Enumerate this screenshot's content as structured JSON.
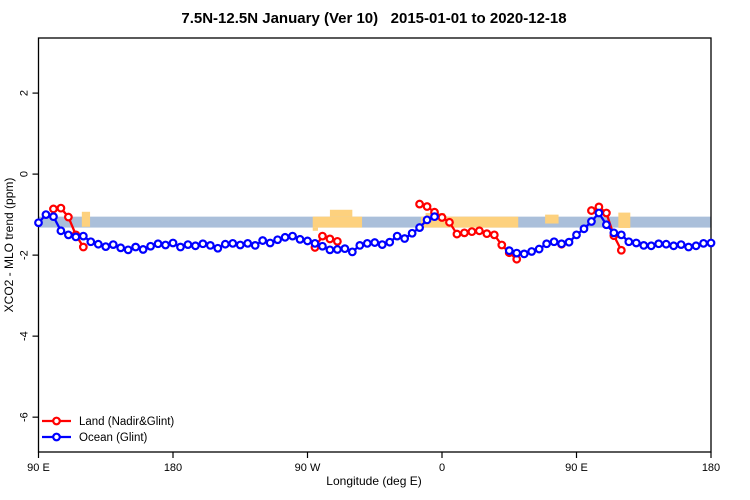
{
  "chart_data": {
    "type": "line-scatter",
    "title": "7.5N-12.5N January (Ver 10)   2015-01-01 to 2020-12-18",
    "xlabel": "Longitude (deg E)",
    "ylabel": "XCO2 - MLO trend (ppm)",
    "xlim": [
      90,
      540
    ],
    "ylim": [
      -6.86,
      3.36
    ],
    "grid": false,
    "x_ticks": [
      {
        "value": 90,
        "label": "90 E"
      },
      {
        "value": 180,
        "label": "180"
      },
      {
        "value": 270,
        "label": "90 W"
      },
      {
        "value": 360,
        "label": "0"
      },
      {
        "value": 450,
        "label": "90 E"
      },
      {
        "value": 540,
        "label": "180"
      }
    ],
    "y_ticks": [
      {
        "value": 2,
        "label": "2"
      },
      {
        "value": 0,
        "label": "0"
      },
      {
        "value": -2,
        "label": "-2"
      },
      {
        "value": -4,
        "label": "-4"
      },
      {
        "value": -6,
        "label": "-6"
      }
    ],
    "map_band": {
      "description": "latitude-strip map: ocean band with land segments",
      "ocean_color": "#aabfda",
      "land_color": "#fdd17e",
      "ppm_top": -1.05,
      "ppm_bottom": -1.32,
      "land_segments": [
        {
          "from": 119,
          "to": 124.5,
          "top": -0.93,
          "bottom": -1.3
        },
        {
          "from": 273.5,
          "to": 306.5,
          "top": -1.05,
          "bottom": -1.32
        },
        {
          "from": 285,
          "to": 300,
          "top": -0.88,
          "bottom": -1.05
        },
        {
          "from": 273.5,
          "to": 277,
          "top": -1.32,
          "bottom": -1.4
        },
        {
          "from": 346,
          "to": 411,
          "top": -1.05,
          "bottom": -1.32
        },
        {
          "from": 349,
          "to": 362,
          "top": -0.96,
          "bottom": -1.05
        },
        {
          "from": 429,
          "to": 438,
          "top": -1.0,
          "bottom": -1.22
        },
        {
          "from": 478,
          "to": 486,
          "top": -0.95,
          "bottom": -1.33
        }
      ]
    },
    "series": [
      {
        "name": "Land (Nadir&Glint)",
        "color": "#ff0000",
        "points": [
          [
            100,
            -0.86
          ],
          [
            105,
            -0.84
          ],
          [
            110,
            -1.06
          ],
          [
            115,
            -1.5
          ],
          [
            120,
            -1.8
          ],
          [
            275,
            -1.81
          ],
          [
            280,
            -1.53
          ],
          [
            285,
            -1.6
          ],
          [
            290,
            -1.66
          ],
          [
            345,
            -0.74
          ],
          [
            350,
            -0.8
          ],
          [
            355,
            -0.94
          ],
          [
            360,
            -1.07
          ],
          [
            365,
            -1.19
          ],
          [
            370,
            -1.48
          ],
          [
            375,
            -1.45
          ],
          [
            380,
            -1.42
          ],
          [
            385,
            -1.4
          ],
          [
            390,
            -1.47
          ],
          [
            395,
            -1.5
          ],
          [
            400,
            -1.75
          ],
          [
            405,
            -1.94
          ],
          [
            410,
            -2.1
          ],
          [
            440,
            -1.73
          ],
          [
            460,
            -0.9
          ],
          [
            465,
            -0.81
          ],
          [
            470,
            -0.96
          ],
          [
            475,
            -1.52
          ],
          [
            480,
            -1.88
          ]
        ]
      },
      {
        "name": "Ocean (Glint)",
        "color": "#0000ff",
        "points": [
          [
            90,
            -1.2
          ],
          [
            95,
            -1.0
          ],
          [
            100,
            -1.05
          ],
          [
            105,
            -1.4
          ],
          [
            110,
            -1.5
          ],
          [
            115,
            -1.55
          ],
          [
            120,
            -1.53
          ],
          [
            125,
            -1.67
          ],
          [
            130,
            -1.73
          ],
          [
            135,
            -1.79
          ],
          [
            140,
            -1.74
          ],
          [
            145,
            -1.82
          ],
          [
            150,
            -1.87
          ],
          [
            155,
            -1.8
          ],
          [
            160,
            -1.86
          ],
          [
            165,
            -1.78
          ],
          [
            170,
            -1.72
          ],
          [
            175,
            -1.75
          ],
          [
            180,
            -1.7
          ],
          [
            185,
            -1.8
          ],
          [
            190,
            -1.74
          ],
          [
            195,
            -1.77
          ],
          [
            200,
            -1.72
          ],
          [
            205,
            -1.76
          ],
          [
            210,
            -1.83
          ],
          [
            215,
            -1.73
          ],
          [
            220,
            -1.71
          ],
          [
            225,
            -1.75
          ],
          [
            230,
            -1.71
          ],
          [
            235,
            -1.76
          ],
          [
            240,
            -1.64
          ],
          [
            245,
            -1.7
          ],
          [
            250,
            -1.62
          ],
          [
            255,
            -1.56
          ],
          [
            260,
            -1.53
          ],
          [
            265,
            -1.61
          ],
          [
            270,
            -1.65
          ],
          [
            275,
            -1.71
          ],
          [
            280,
            -1.78
          ],
          [
            285,
            -1.87
          ],
          [
            290,
            -1.86
          ],
          [
            295,
            -1.84
          ],
          [
            300,
            -1.92
          ],
          [
            305,
            -1.76
          ],
          [
            310,
            -1.71
          ],
          [
            315,
            -1.69
          ],
          [
            320,
            -1.74
          ],
          [
            325,
            -1.68
          ],
          [
            330,
            -1.53
          ],
          [
            335,
            -1.59
          ],
          [
            340,
            -1.46
          ],
          [
            345,
            -1.32
          ],
          [
            350,
            -1.13
          ],
          [
            355,
            -1.05
          ],
          [
            405,
            -1.89
          ],
          [
            410,
            -1.95
          ],
          [
            415,
            -1.97
          ],
          [
            420,
            -1.91
          ],
          [
            425,
            -1.85
          ],
          [
            430,
            -1.72
          ],
          [
            435,
            -1.67
          ],
          [
            440,
            -1.72
          ],
          [
            445,
            -1.68
          ],
          [
            450,
            -1.5
          ],
          [
            455,
            -1.35
          ],
          [
            460,
            -1.17
          ],
          [
            465,
            -0.96
          ],
          [
            470,
            -1.25
          ],
          [
            475,
            -1.45
          ],
          [
            480,
            -1.5
          ],
          [
            485,
            -1.67
          ],
          [
            490,
            -1.7
          ],
          [
            495,
            -1.76
          ],
          [
            500,
            -1.77
          ],
          [
            505,
            -1.72
          ],
          [
            510,
            -1.73
          ],
          [
            515,
            -1.77
          ],
          [
            520,
            -1.74
          ],
          [
            525,
            -1.8
          ],
          [
            530,
            -1.77
          ],
          [
            535,
            -1.71
          ],
          [
            540,
            -1.7
          ]
        ]
      }
    ],
    "legend": {
      "position": "bottom-left",
      "items": [
        {
          "label": "Land (Nadir&Glint)",
          "color": "#ff0000"
        },
        {
          "label": "Ocean (Glint)",
          "color": "#0000ff"
        }
      ]
    }
  }
}
